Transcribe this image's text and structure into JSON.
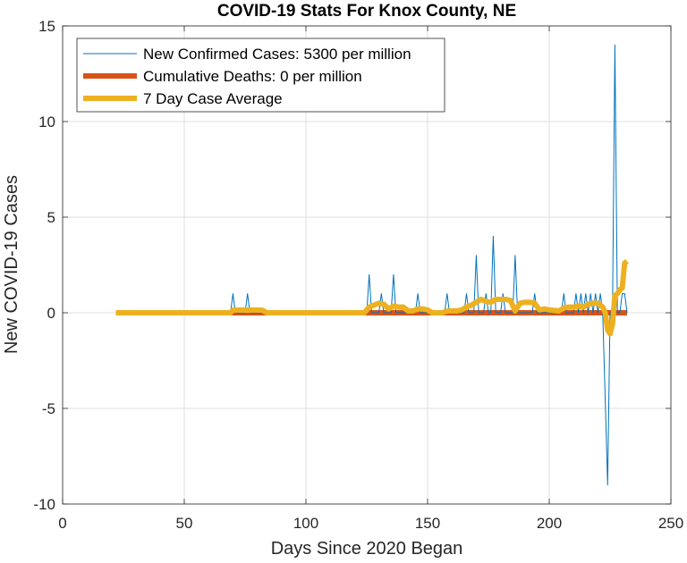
{
  "chart_data": {
    "type": "line",
    "title": "COVID-19 Stats For Knox County, NE",
    "xlabel": "Days Since 2020 Began",
    "ylabel": "New COVID-19 Cases",
    "xlim": [
      0,
      250
    ],
    "ylim": [
      -10,
      15
    ],
    "xticks": [
      0,
      50,
      100,
      150,
      200,
      250
    ],
    "yticks": [
      -10,
      -5,
      0,
      5,
      10,
      15
    ],
    "grid": true,
    "legend_position": "top-left",
    "series": [
      {
        "name": "New Confirmed Cases: 5300 per million",
        "color": "#0072BD",
        "x": [
          22,
          69,
          70,
          71,
          75,
          76,
          77,
          125,
          126,
          127,
          130,
          131,
          132,
          135,
          136,
          137,
          145,
          146,
          147,
          157,
          158,
          159,
          165,
          166,
          167,
          169,
          170,
          171,
          173,
          174,
          175,
          176,
          177,
          178,
          180,
          181,
          182,
          185,
          186,
          187,
          193,
          194,
          195,
          205,
          206,
          207,
          210,
          211,
          212,
          213,
          214,
          215,
          216,
          217,
          218,
          219,
          220,
          221,
          222,
          224,
          225,
          226,
          227,
          228,
          229,
          230,
          231,
          232
        ],
        "y": [
          0,
          0,
          1,
          0,
          0,
          1,
          0,
          0,
          2,
          0,
          0,
          1,
          0,
          0,
          2,
          0,
          0,
          1,
          0,
          0,
          1,
          0,
          0,
          1,
          0,
          0,
          3,
          0,
          0,
          1,
          0,
          0,
          4,
          0,
          0,
          1,
          0,
          0,
          3,
          0,
          0,
          1,
          0,
          0,
          1,
          0,
          0,
          1,
          0,
          1,
          0,
          1,
          0,
          1,
          0,
          1,
          0,
          1,
          0,
          -9,
          0,
          0,
          14,
          0,
          0,
          1,
          1,
          0
        ]
      },
      {
        "name": "Cumulative Deaths: 0 per million",
        "color": "#D95319",
        "x": [
          22,
          232
        ],
        "y": [
          0,
          0
        ]
      },
      {
        "name": "7 Day Case Average",
        "color": "#EDB120",
        "x": [
          22,
          69,
          70,
          76,
          77,
          82,
          84,
          124,
          126,
          128,
          130,
          132,
          134,
          136,
          138,
          140,
          142,
          144,
          146,
          148,
          150,
          152,
          156,
          158,
          162,
          164,
          166,
          168,
          170,
          172,
          174,
          176,
          178,
          180,
          182,
          184,
          186,
          188,
          190,
          192,
          194,
          196,
          198,
          200,
          204,
          206,
          208,
          210,
          212,
          214,
          216,
          218,
          220,
          222,
          223,
          224,
          225,
          226,
          227,
          228,
          229,
          230,
          231,
          232
        ],
        "y": [
          0,
          0,
          0.14,
          0.14,
          0.14,
          0.14,
          0,
          0,
          0.3,
          0.4,
          0.5,
          0.45,
          0.2,
          0.35,
          0.3,
          0.3,
          0.1,
          0.1,
          0.2,
          0.2,
          0.15,
          0,
          0,
          0.1,
          0.1,
          0.15,
          0.3,
          0.4,
          0.55,
          0.7,
          0.6,
          0.55,
          0.7,
          0.7,
          0.7,
          0.65,
          0.1,
          0.5,
          0.55,
          0.55,
          0.5,
          0.15,
          0.2,
          0.15,
          0.1,
          0.25,
          0.3,
          0.3,
          0.35,
          0.3,
          0.45,
          0.5,
          0.5,
          0.3,
          0,
          -0.9,
          -1.1,
          -0.6,
          0.9,
          1.0,
          1.2,
          1.3,
          2.6,
          2.7
        ]
      }
    ]
  }
}
